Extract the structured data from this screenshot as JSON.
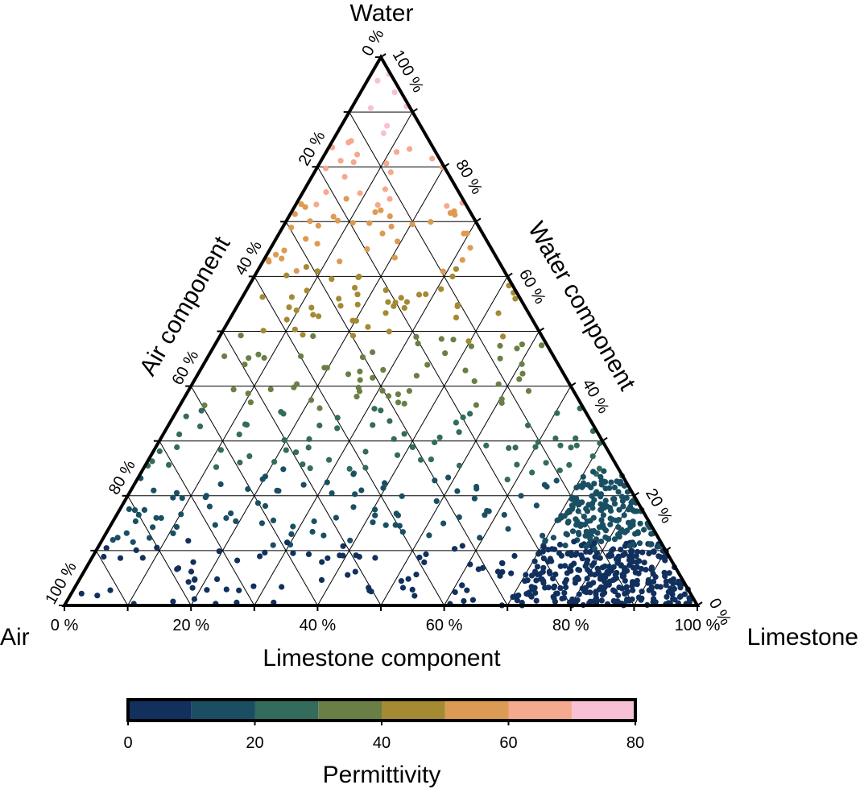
{
  "chart_data": {
    "type": "scatter",
    "subtype": "ternary",
    "vertices": {
      "top": "Water",
      "left": "Air",
      "right": "Limestone"
    },
    "axis_titles": {
      "bottom": "Limestone component",
      "left": "Air component",
      "right": "Water component"
    },
    "ticks": {
      "bottom": [
        "0 %",
        "20 %",
        "40 %",
        "60 %",
        "80 %",
        "100 %"
      ],
      "left": [
        "0 %",
        "20 %",
        "40 %",
        "60 %",
        "80 %",
        "100 %"
      ],
      "right": [
        "0 %",
        "20 %",
        "40 %",
        "60 %",
        "80 %",
        "100 %"
      ]
    },
    "grid": true,
    "grid_step": 10,
    "points_note": "Random scatter, denser toward Limestone corner. Each point: [air, limestone, water] in %, color by permittivity.",
    "colorbar": {
      "title": "Permittivity",
      "range": [
        0,
        80
      ],
      "ticks": [
        "0",
        "20",
        "40",
        "60",
        "80"
      ],
      "bins": [
        {
          "from": 0,
          "to": 10,
          "color": "#11305d"
        },
        {
          "from": 10,
          "to": 20,
          "color": "#1a4f63"
        },
        {
          "from": 20,
          "to": 30,
          "color": "#336b5d"
        },
        {
          "from": 30,
          "to": 40,
          "color": "#6a7f46"
        },
        {
          "from": 40,
          "to": 50,
          "color": "#a38a33"
        },
        {
          "from": 50,
          "to": 60,
          "color": "#dc9b52"
        },
        {
          "from": 60,
          "to": 70,
          "color": "#f5a98e"
        },
        {
          "from": 70,
          "to": 80,
          "color": "#f7c0d5"
        }
      ]
    }
  }
}
